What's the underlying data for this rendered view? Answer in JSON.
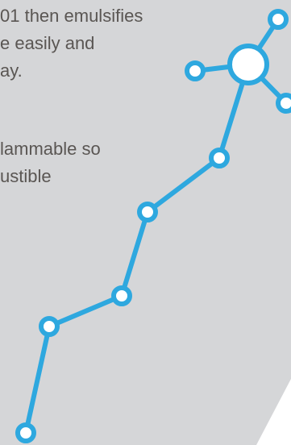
{
  "paragraph_1": {
    "line_1": "01 then emulsifies",
    "line_2": "e easily and",
    "line_3": "ay."
  },
  "paragraph_2": {
    "line_1": "lammable so",
    "line_2": "ustible"
  },
  "colors": {
    "background_panel": "#d5d6d8",
    "text": "#5a5653",
    "network_line": "#2ea8df",
    "node_fill": "#ffffff"
  }
}
